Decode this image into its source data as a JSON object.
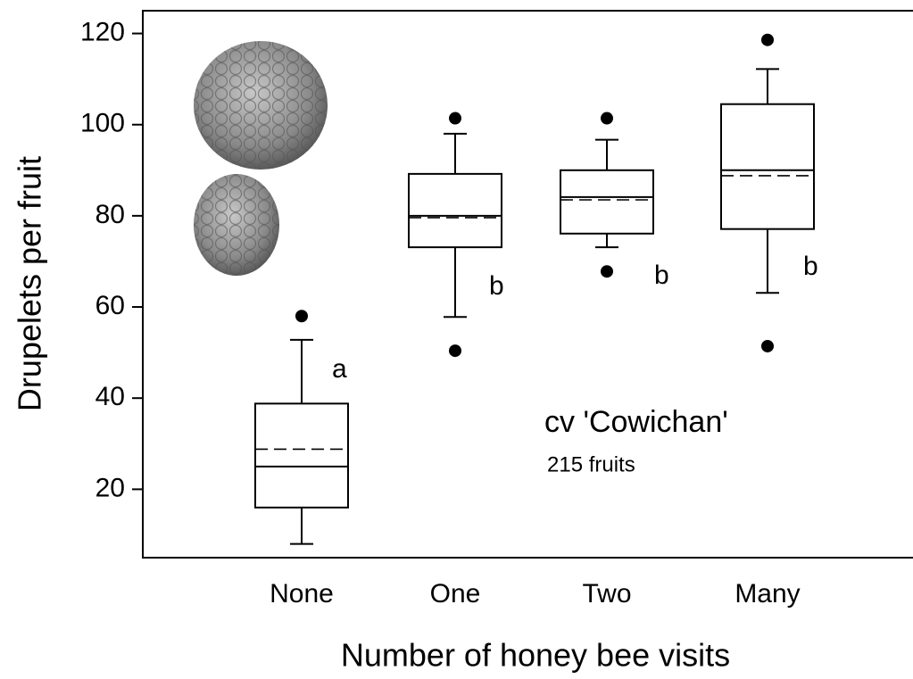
{
  "chart_data": {
    "type": "box",
    "xlabel": "Number of honey bee visits",
    "ylabel": "Drupelets per fruit",
    "categories": [
      "None",
      "One",
      "Two",
      "Many"
    ],
    "boxes": [
      {
        "whisker_low": 8,
        "q1": 16,
        "median": 25,
        "mean": 28.8,
        "q3": 38.8,
        "whisker_high": 52.8,
        "outliers": [
          58
        ],
        "letter": "a"
      },
      {
        "whisker_low": 57.8,
        "q1": 73.1,
        "median": 80,
        "mean": 79.6,
        "q3": 89.2,
        "whisker_high": 98,
        "outliers": [
          101.4,
          50.4
        ],
        "letter": "b"
      },
      {
        "whisker_low": 73.1,
        "q1": 76.1,
        "median": 84.1,
        "mean": 83.5,
        "q3": 90,
        "whisker_high": 96.7,
        "outliers": [
          101.4,
          67.8
        ],
        "letter": "b"
      },
      {
        "whisker_low": 63.1,
        "q1": 77.1,
        "median": 90,
        "mean": 88.8,
        "q3": 104.5,
        "whisker_high": 112.2,
        "outliers": [
          118.6,
          51.4
        ],
        "letter": "b"
      }
    ],
    "annotations": [
      "cv 'Cowichan'",
      "215 fruits"
    ],
    "ylim": [
      5,
      125
    ],
    "yticks": [
      20,
      40,
      60,
      80,
      100,
      120
    ]
  }
}
